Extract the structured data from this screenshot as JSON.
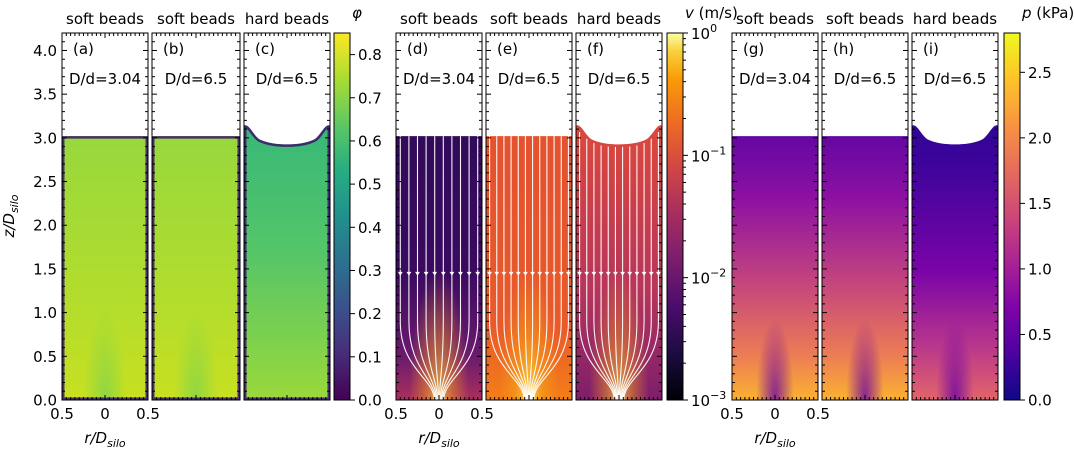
{
  "chart_data": {
    "type": "heatmap",
    "colors": {
      "phi_colormap": "viridis",
      "v_colormap": "inferno",
      "p_colormap": "plasma",
      "streamlines": "#ffffff"
    },
    "y_axis": {
      "label_main": "z/D",
      "label_sub": "silo",
      "range": [
        0,
        4.2
      ],
      "ticks": [
        "0.0",
        "0.5",
        "1.0",
        "1.5",
        "2.0",
        "2.5",
        "3.0",
        "3.5",
        "4.0"
      ]
    },
    "x_axis": {
      "label_main": "r/D",
      "label_sub": "silo",
      "ticks": [
        "0.5",
        "0",
        "0.5"
      ]
    },
    "groups": [
      {
        "quantity": "phi",
        "panels": [
          {
            "label": "(a)",
            "title": "soft beads",
            "ratio": "D/d=3.04",
            "surface_height": 3.02,
            "shape": "flat"
          },
          {
            "label": "(b)",
            "title": "soft beads",
            "ratio": "D/d=6.5",
            "surface_height": 3.02,
            "shape": "flat"
          },
          {
            "label": "(c)",
            "title": "hard beads",
            "ratio": "D/d=6.5",
            "surface_height": 2.92,
            "shape": "crater"
          }
        ],
        "colorbar": {
          "label": "φ",
          "range": [
            0,
            0.85
          ],
          "scale": "linear",
          "ticks": [
            "0.0",
            "0.1",
            "0.2",
            "0.3",
            "0.4",
            "0.5",
            "0.6",
            "0.7",
            "0.8"
          ]
        }
      },
      {
        "quantity": "v",
        "panels": [
          {
            "label": "(d)",
            "title": "soft beads",
            "ratio": "D/d=3.04",
            "surface_height": 3.02,
            "shape": "flat"
          },
          {
            "label": "(e)",
            "title": "soft beads",
            "ratio": "D/d=6.5",
            "surface_height": 3.02,
            "shape": "flat"
          },
          {
            "label": "(f)",
            "title": "hard beads",
            "ratio": "D/d=6.5",
            "surface_height": 2.92,
            "shape": "crater"
          }
        ],
        "colorbar": {
          "label": "v (m/s)",
          "range": [
            0.001,
            1.0
          ],
          "scale": "log",
          "ticks": [
            {
              "base": "10",
              "exp": "0",
              "value": 1
            },
            {
              "base": "10",
              "exp": "−1",
              "value": 0.1
            },
            {
              "base": "10",
              "exp": "−2",
              "value": 0.01
            },
            {
              "base": "10",
              "exp": "−3",
              "value": 0.001
            }
          ]
        }
      },
      {
        "quantity": "p",
        "panels": [
          {
            "label": "(g)",
            "title": "soft beads",
            "ratio": "D/d=3.04",
            "surface_height": 3.02,
            "shape": "flat"
          },
          {
            "label": "(h)",
            "title": "soft beads",
            "ratio": "D/d=6.5",
            "surface_height": 3.02,
            "shape": "flat"
          },
          {
            "label": "(i)",
            "title": "hard beads",
            "ratio": "D/d=6.5",
            "surface_height": 2.92,
            "shape": "crater"
          }
        ],
        "colorbar": {
          "label": "p (kPa)",
          "range": [
            0,
            2.8
          ],
          "scale": "linear",
          "ticks": [
            "0.0",
            "0.5",
            "1.0",
            "1.5",
            "2.0",
            "2.5"
          ]
        }
      }
    ]
  }
}
